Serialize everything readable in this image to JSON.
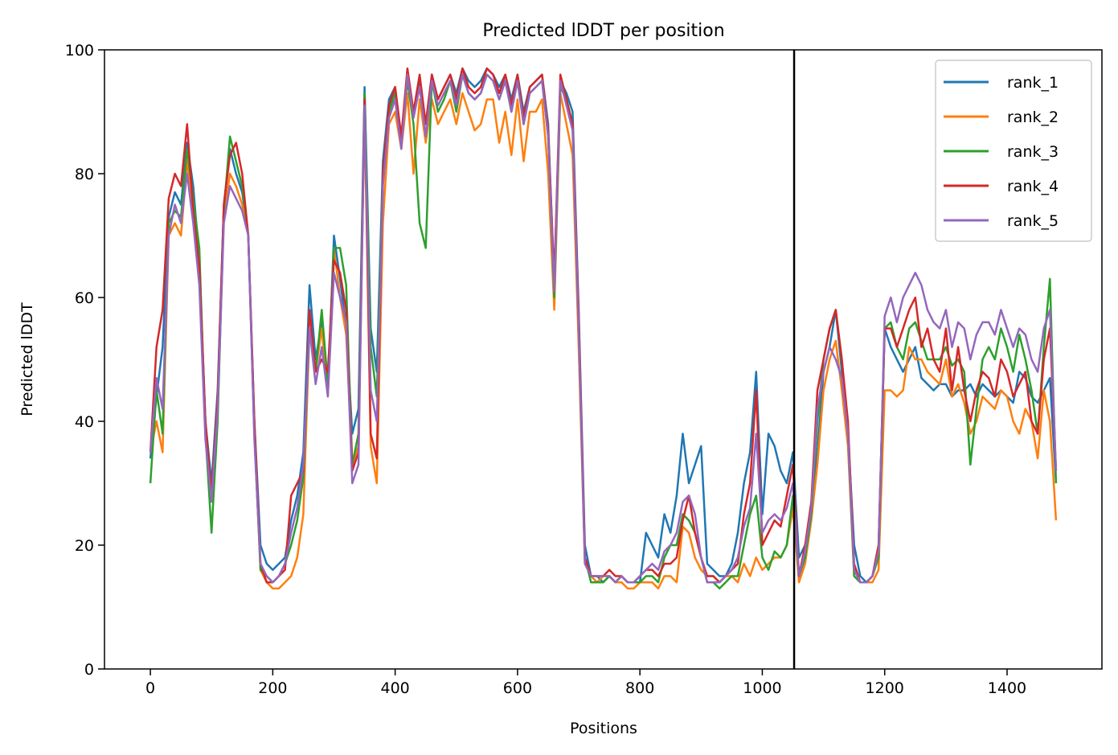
{
  "chart_data": {
    "type": "line",
    "title": "Predicted lDDT per position",
    "xlabel": "Positions",
    "ylabel": "Predicted lDDT",
    "xlim": [
      -75,
      1555
    ],
    "ylim": [
      0,
      100
    ],
    "xticks": [
      0,
      200,
      400,
      600,
      800,
      1000,
      1200,
      1400
    ],
    "yticks": [
      0,
      20,
      40,
      60,
      80,
      100
    ],
    "xtick_labels": [
      "0",
      "200",
      "400",
      "600",
      "800",
      "1000",
      "1200",
      "1400"
    ],
    "ytick_labels": [
      "0",
      "20",
      "40",
      "60",
      "80",
      "100"
    ],
    "grid": false,
    "legend_position": "top-right",
    "vertical_line": {
      "x": 1052,
      "color": "#000000"
    },
    "x": [
      0,
      10,
      20,
      30,
      40,
      50,
      60,
      70,
      80,
      90,
      100,
      110,
      120,
      130,
      140,
      150,
      160,
      170,
      180,
      190,
      200,
      210,
      220,
      230,
      240,
      250,
      260,
      270,
      280,
      290,
      300,
      310,
      320,
      330,
      340,
      350,
      360,
      370,
      380,
      390,
      400,
      410,
      420,
      430,
      440,
      450,
      460,
      470,
      480,
      490,
      500,
      510,
      520,
      530,
      540,
      550,
      560,
      570,
      580,
      590,
      600,
      610,
      620,
      630,
      640,
      650,
      660,
      670,
      680,
      690,
      700,
      710,
      720,
      730,
      740,
      750,
      760,
      770,
      780,
      790,
      800,
      810,
      820,
      830,
      840,
      850,
      860,
      870,
      880,
      890,
      900,
      910,
      920,
      930,
      940,
      950,
      960,
      970,
      980,
      990,
      1000,
      1010,
      1020,
      1030,
      1040,
      1050,
      1060,
      1070,
      1080,
      1090,
      1100,
      1110,
      1120,
      1130,
      1140,
      1150,
      1160,
      1170,
      1180,
      1190,
      1200,
      1210,
      1220,
      1230,
      1240,
      1250,
      1260,
      1270,
      1280,
      1290,
      1300,
      1310,
      1320,
      1330,
      1340,
      1350,
      1360,
      1370,
      1380,
      1390,
      1400,
      1410,
      1420,
      1430,
      1440,
      1450,
      1460,
      1470,
      1480
    ],
    "series": [
      {
        "name": "rank_1",
        "color": "#1f77b4",
        "values": [
          34,
          44,
          52,
          73,
          77,
          75,
          85,
          78,
          66,
          40,
          30,
          45,
          75,
          84,
          80,
          77,
          70,
          40,
          20,
          17,
          16,
          17,
          18,
          24,
          28,
          35,
          62,
          50,
          56,
          45,
          70,
          63,
          55,
          38,
          42,
          94,
          55,
          48,
          82,
          92,
          94,
          85,
          96,
          90,
          95,
          88,
          96,
          92,
          94,
          96,
          93,
          97,
          95,
          94,
          95,
          97,
          96,
          94,
          96,
          92,
          96,
          90,
          94,
          95,
          96,
          88,
          62,
          95,
          93,
          90,
          58,
          20,
          15,
          15,
          14,
          15,
          14,
          15,
          14,
          14,
          14,
          22,
          20,
          18,
          25,
          22,
          28,
          38,
          30,
          33,
          36,
          17,
          16,
          15,
          15,
          17,
          22,
          30,
          35,
          48,
          25,
          38,
          36,
          32,
          30,
          35,
          18,
          20,
          25,
          35,
          48,
          52,
          58,
          48,
          38,
          20,
          15,
          14,
          15,
          20,
          55,
          52,
          50,
          48,
          50,
          52,
          47,
          46,
          45,
          46,
          46,
          44,
          45,
          45,
          46,
          44,
          46,
          45,
          44,
          45,
          44,
          43,
          48,
          47,
          44,
          43,
          45,
          47,
          30
        ]
      },
      {
        "name": "rank_2",
        "color": "#ff7f0e",
        "values": [
          35,
          40,
          35,
          70,
          72,
          70,
          82,
          74,
          65,
          38,
          28,
          43,
          73,
          80,
          78,
          75,
          70,
          38,
          16,
          14,
          13,
          13,
          14,
          15,
          18,
          25,
          55,
          48,
          55,
          44,
          68,
          60,
          54,
          33,
          36,
          90,
          36,
          30,
          72,
          88,
          90,
          84,
          93,
          80,
          92,
          85,
          92,
          88,
          90,
          92,
          88,
          93,
          90,
          87,
          88,
          92,
          92,
          85,
          90,
          83,
          92,
          82,
          90,
          90,
          92,
          80,
          58,
          93,
          88,
          83,
          52,
          17,
          15,
          14,
          15,
          15,
          14,
          14,
          13,
          13,
          14,
          14,
          14,
          13,
          15,
          15,
          14,
          23,
          22,
          18,
          16,
          15,
          15,
          14,
          15,
          15,
          14,
          17,
          15,
          18,
          16,
          17,
          18,
          18,
          20,
          26,
          14,
          17,
          24,
          33,
          45,
          50,
          53,
          45,
          36,
          15,
          14,
          14,
          14,
          16,
          45,
          45,
          44,
          45,
          52,
          50,
          50,
          48,
          47,
          46,
          50,
          44,
          46,
          43,
          38,
          40,
          44,
          43,
          42,
          45,
          44,
          40,
          38,
          42,
          40,
          34,
          45,
          40,
          24
        ]
      },
      {
        "name": "rank_3",
        "color": "#2ca02c",
        "values": [
          30,
          45,
          38,
          72,
          74,
          73,
          84,
          76,
          68,
          38,
          22,
          40,
          74,
          86,
          82,
          78,
          70,
          38,
          16,
          15,
          14,
          15,
          17,
          20,
          24,
          31,
          55,
          48,
          58,
          46,
          68,
          68,
          62,
          33,
          38,
          93,
          52,
          44,
          80,
          90,
          93,
          86,
          95,
          88,
          72,
          68,
          95,
          90,
          92,
          95,
          90,
          96,
          93,
          92,
          93,
          96,
          95,
          92,
          95,
          90,
          95,
          88,
          93,
          94,
          95,
          86,
          60,
          94,
          92,
          88,
          55,
          18,
          14,
          14,
          14,
          15,
          14,
          15,
          14,
          14,
          14,
          15,
          15,
          14,
          18,
          20,
          20,
          25,
          24,
          22,
          18,
          14,
          14,
          13,
          14,
          15,
          15,
          20,
          25,
          28,
          18,
          16,
          19,
          18,
          20,
          28,
          15,
          18,
          25,
          40,
          50,
          55,
          58,
          50,
          38,
          15,
          14,
          14,
          15,
          18,
          55,
          56,
          52,
          50,
          55,
          56,
          53,
          50,
          50,
          50,
          52,
          49,
          50,
          48,
          33,
          42,
          50,
          52,
          50,
          55,
          52,
          48,
          54,
          50,
          45,
          38,
          52,
          63,
          30
        ]
      },
      {
        "name": "rank_4",
        "color": "#d62728",
        "values": [
          35,
          52,
          58,
          76,
          80,
          78,
          88,
          74,
          65,
          40,
          28,
          44,
          75,
          83,
          85,
          80,
          70,
          40,
          17,
          14,
          14,
          15,
          16,
          28,
          30,
          32,
          58,
          48,
          50,
          48,
          66,
          64,
          58,
          32,
          35,
          92,
          38,
          34,
          80,
          91,
          94,
          86,
          97,
          90,
          96,
          88,
          96,
          92,
          94,
          96,
          92,
          97,
          94,
          93,
          94,
          97,
          96,
          93,
          96,
          91,
          96,
          89,
          94,
          95,
          96,
          87,
          63,
          96,
          92,
          88,
          57,
          18,
          15,
          15,
          15,
          16,
          15,
          15,
          14,
          14,
          15,
          16,
          16,
          15,
          17,
          17,
          18,
          24,
          28,
          22,
          18,
          15,
          15,
          14,
          15,
          16,
          17,
          25,
          30,
          45,
          20,
          22,
          24,
          23,
          28,
          33,
          15,
          20,
          27,
          45,
          50,
          55,
          58,
          50,
          40,
          17,
          14,
          14,
          15,
          20,
          55,
          55,
          52,
          55,
          58,
          60,
          52,
          55,
          50,
          48,
          55,
          45,
          52,
          45,
          40,
          45,
          48,
          47,
          44,
          50,
          48,
          44,
          46,
          48,
          40,
          38,
          50,
          55,
          32
        ]
      },
      {
        "name": "rank_5",
        "color": "#9467bd",
        "values": [
          35,
          47,
          42,
          70,
          75,
          72,
          80,
          72,
          62,
          37,
          27,
          42,
          72,
          78,
          76,
          74,
          70,
          37,
          17,
          15,
          14,
          15,
          17,
          22,
          26,
          33,
          55,
          46,
          52,
          44,
          64,
          60,
          56,
          30,
          33,
          91,
          45,
          40,
          78,
          89,
          92,
          84,
          96,
          89,
          94,
          86,
          95,
          91,
          93,
          95,
          91,
          96,
          93,
          92,
          93,
          96,
          95,
          92,
          95,
          90,
          95,
          88,
          93,
          94,
          95,
          86,
          61,
          95,
          91,
          87,
          55,
          17,
          15,
          15,
          15,
          15,
          14,
          15,
          14,
          14,
          15,
          16,
          17,
          16,
          19,
          20,
          22,
          27,
          28,
          25,
          18,
          14,
          14,
          14,
          15,
          16,
          18,
          23,
          26,
          38,
          22,
          24,
          25,
          24,
          26,
          30,
          15,
          19,
          26,
          42,
          48,
          52,
          50,
          47,
          38,
          16,
          14,
          14,
          15,
          19,
          57,
          60,
          56,
          60,
          62,
          64,
          62,
          58,
          56,
          55,
          58,
          52,
          56,
          55,
          50,
          54,
          56,
          56,
          54,
          58,
          55,
          52,
          55,
          54,
          50,
          48,
          55,
          58,
          32
        ]
      }
    ]
  }
}
